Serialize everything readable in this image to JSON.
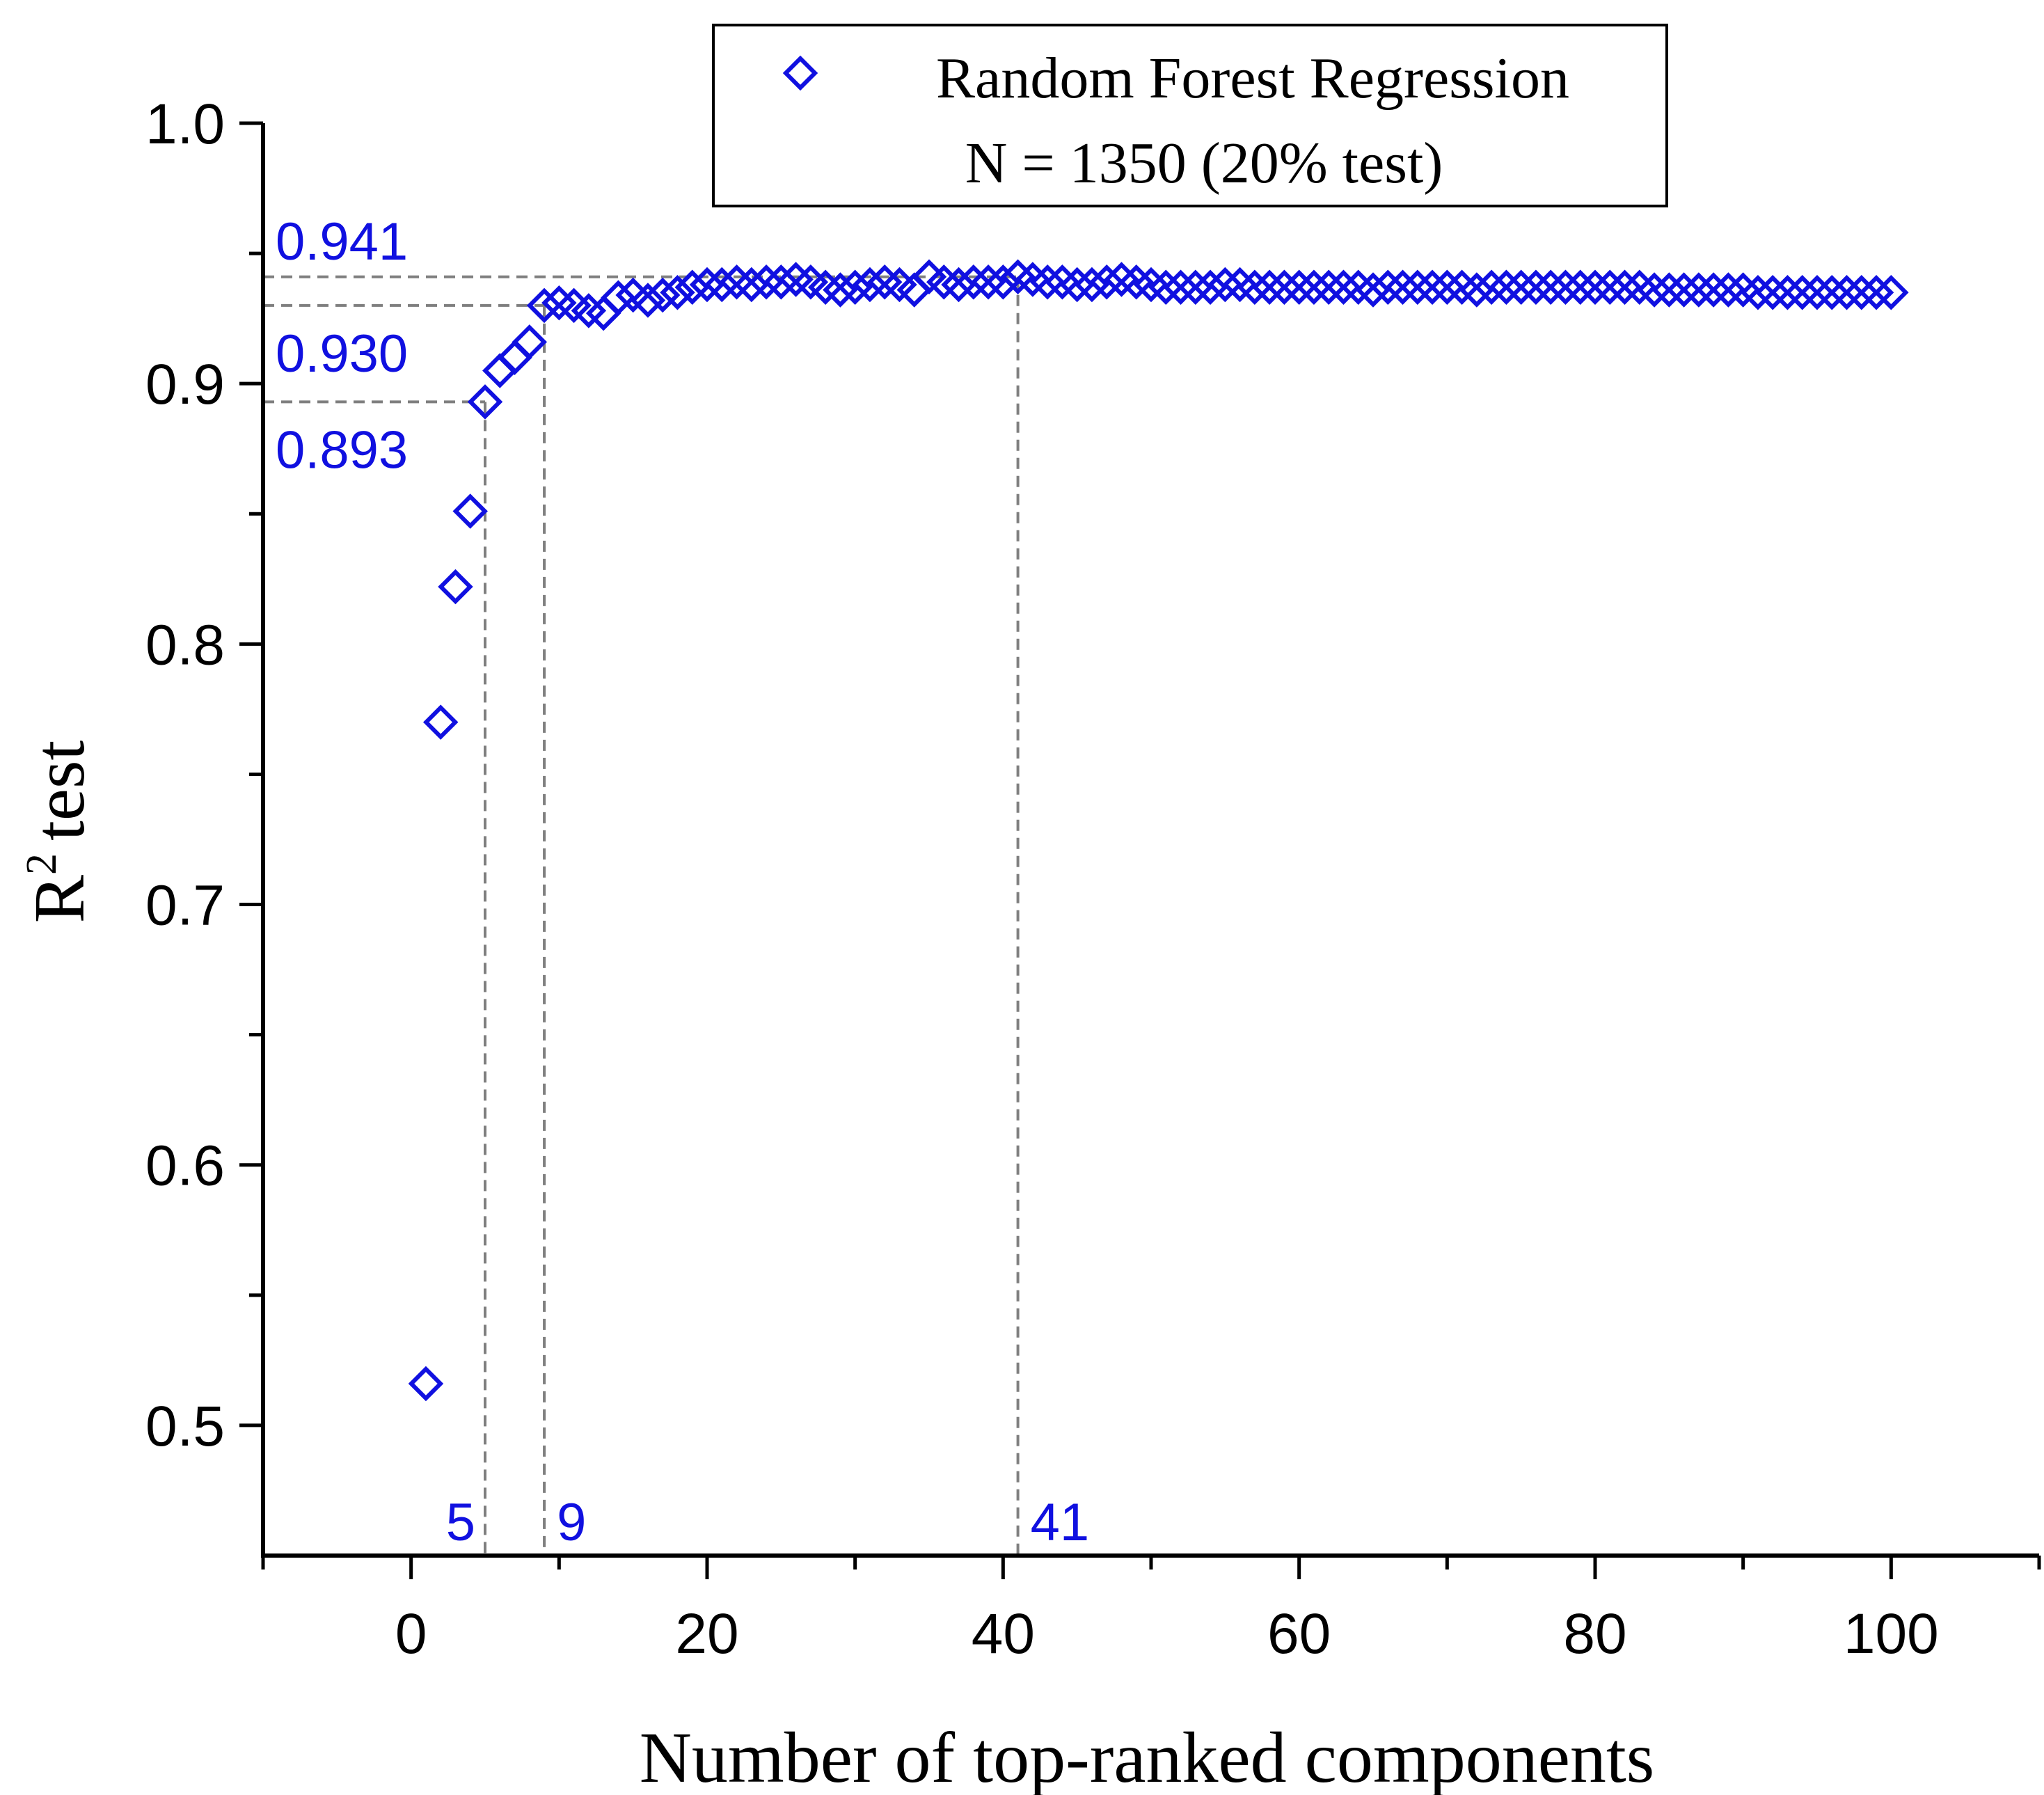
{
  "chart_data": {
    "type": "scatter",
    "title": "",
    "xlabel": "Number of top-ranked components",
    "ylabel": "test",
    "ylabel_base": "R",
    "ylabel_sup": "2",
    "xlim": [
      -10,
      110
    ],
    "ylim": [
      0.45,
      1.0
    ],
    "x_ticks": [
      0,
      20,
      40,
      60,
      80,
      100
    ],
    "x_tick_labels": [
      "0",
      "20",
      "40",
      "60",
      "80",
      "100"
    ],
    "y_ticks": [
      0.5,
      0.6,
      0.7,
      0.8,
      0.9,
      1.0
    ],
    "y_tick_labels": [
      "0.5",
      "0.6",
      "0.7",
      "0.8",
      "0.9",
      "1.0"
    ],
    "grid": false,
    "legend": {
      "placement": "top-center",
      "lines": [
        "Random Forest Regression",
        "N = 1350 (20% test)"
      ]
    },
    "series": [
      {
        "name": "Random Forest Regression",
        "marker": "diamond-open",
        "color": "#1010e0",
        "x": [
          1,
          2,
          3,
          4,
          5,
          6,
          7,
          8,
          9,
          10,
          11,
          12,
          13,
          14,
          15,
          16,
          17,
          18,
          19,
          20,
          21,
          22,
          23,
          24,
          25,
          26,
          27,
          28,
          29,
          30,
          31,
          32,
          33,
          34,
          35,
          36,
          37,
          38,
          39,
          40,
          41,
          42,
          43,
          44,
          45,
          46,
          47,
          48,
          49,
          50,
          51,
          52,
          53,
          54,
          55,
          56,
          57,
          58,
          59,
          60,
          61,
          62,
          63,
          64,
          65,
          66,
          67,
          68,
          69,
          70,
          71,
          72,
          73,
          74,
          75,
          76,
          77,
          78,
          79,
          80,
          81,
          82,
          83,
          84,
          85,
          86,
          87,
          88,
          89,
          90,
          91,
          92,
          93,
          94,
          95,
          96,
          97,
          98,
          99,
          100
        ],
        "y": [
          0.516,
          0.77,
          0.822,
          0.851,
          0.893,
          0.905,
          0.91,
          0.916,
          0.93,
          0.931,
          0.93,
          0.928,
          0.927,
          0.933,
          0.934,
          0.932,
          0.934,
          0.935,
          0.937,
          0.938,
          0.938,
          0.939,
          0.938,
          0.939,
          0.939,
          0.94,
          0.939,
          0.937,
          0.936,
          0.937,
          0.938,
          0.939,
          0.938,
          0.936,
          0.941,
          0.939,
          0.938,
          0.939,
          0.939,
          0.939,
          0.941,
          0.94,
          0.939,
          0.939,
          0.938,
          0.938,
          0.939,
          0.94,
          0.939,
          0.938,
          0.937,
          0.937,
          0.937,
          0.937,
          0.938,
          0.938,
          0.937,
          0.937,
          0.937,
          0.937,
          0.937,
          0.937,
          0.937,
          0.937,
          0.936,
          0.937,
          0.937,
          0.937,
          0.937,
          0.937,
          0.937,
          0.936,
          0.937,
          0.937,
          0.937,
          0.937,
          0.937,
          0.937,
          0.937,
          0.937,
          0.937,
          0.937,
          0.937,
          0.936,
          0.936,
          0.936,
          0.936,
          0.936,
          0.936,
          0.936,
          0.935,
          0.935,
          0.935,
          0.935,
          0.935,
          0.935,
          0.935,
          0.935,
          0.935,
          0.935
        ]
      }
    ],
    "annotations": {
      "horizontal": [
        {
          "y": 0.941,
          "label": "0.941"
        },
        {
          "y": 0.93,
          "label": "0.930"
        },
        {
          "y": 0.893,
          "label": "0.893"
        }
      ],
      "vertical": [
        {
          "x": 5,
          "label": "5"
        },
        {
          "x": 9,
          "label": "9"
        },
        {
          "x": 41,
          "label": "41"
        }
      ],
      "color": "#1010e0",
      "line_color": "#7f7f7f"
    }
  }
}
